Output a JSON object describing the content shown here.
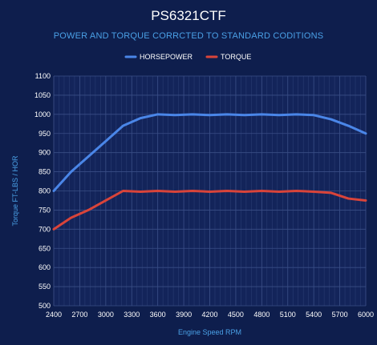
{
  "chart_data": {
    "type": "line",
    "title": "PS6321CTF",
    "subtitle": "POWER AND TORQUE CORRCTED TO STANDARD CODITIONS",
    "xlabel": "Engine Speed RPM",
    "ylabel": "Torque FT-LBS / HOR",
    "x_ticks": [
      2400,
      2700,
      3000,
      3300,
      3600,
      3900,
      4200,
      4500,
      4800,
      5100,
      5400,
      5700,
      6000
    ],
    "y_ticks": [
      500,
      550,
      600,
      650,
      700,
      750,
      800,
      850,
      900,
      950,
      1000,
      1050,
      1100
    ],
    "xlim": [
      2400,
      6000
    ],
    "ylim": [
      500,
      1100
    ],
    "grid": true,
    "legend_position": "top-center",
    "series": [
      {
        "name": "HORSEPOWER",
        "color": "#4a86e8",
        "x": [
          2400,
          2600,
          2800,
          3000,
          3200,
          3400,
          3600,
          3800,
          4000,
          4200,
          4400,
          4600,
          4800,
          5000,
          5200,
          5400,
          5600,
          5800,
          6000
        ],
        "y": [
          800,
          850,
          890,
          930,
          970,
          990,
          1000,
          998,
          1000,
          998,
          1000,
          998,
          1000,
          998,
          1000,
          998,
          987,
          970,
          950
        ]
      },
      {
        "name": "TORQUE",
        "color": "#d9443a",
        "x": [
          2400,
          2600,
          2800,
          3000,
          3200,
          3400,
          3600,
          3800,
          4000,
          4200,
          4400,
          4600,
          4800,
          5000,
          5200,
          5400,
          5600,
          5800,
          6000
        ],
        "y": [
          700,
          730,
          750,
          775,
          800,
          798,
          800,
          798,
          800,
          798,
          800,
          798,
          800,
          798,
          800,
          798,
          795,
          780,
          775
        ]
      }
    ]
  }
}
